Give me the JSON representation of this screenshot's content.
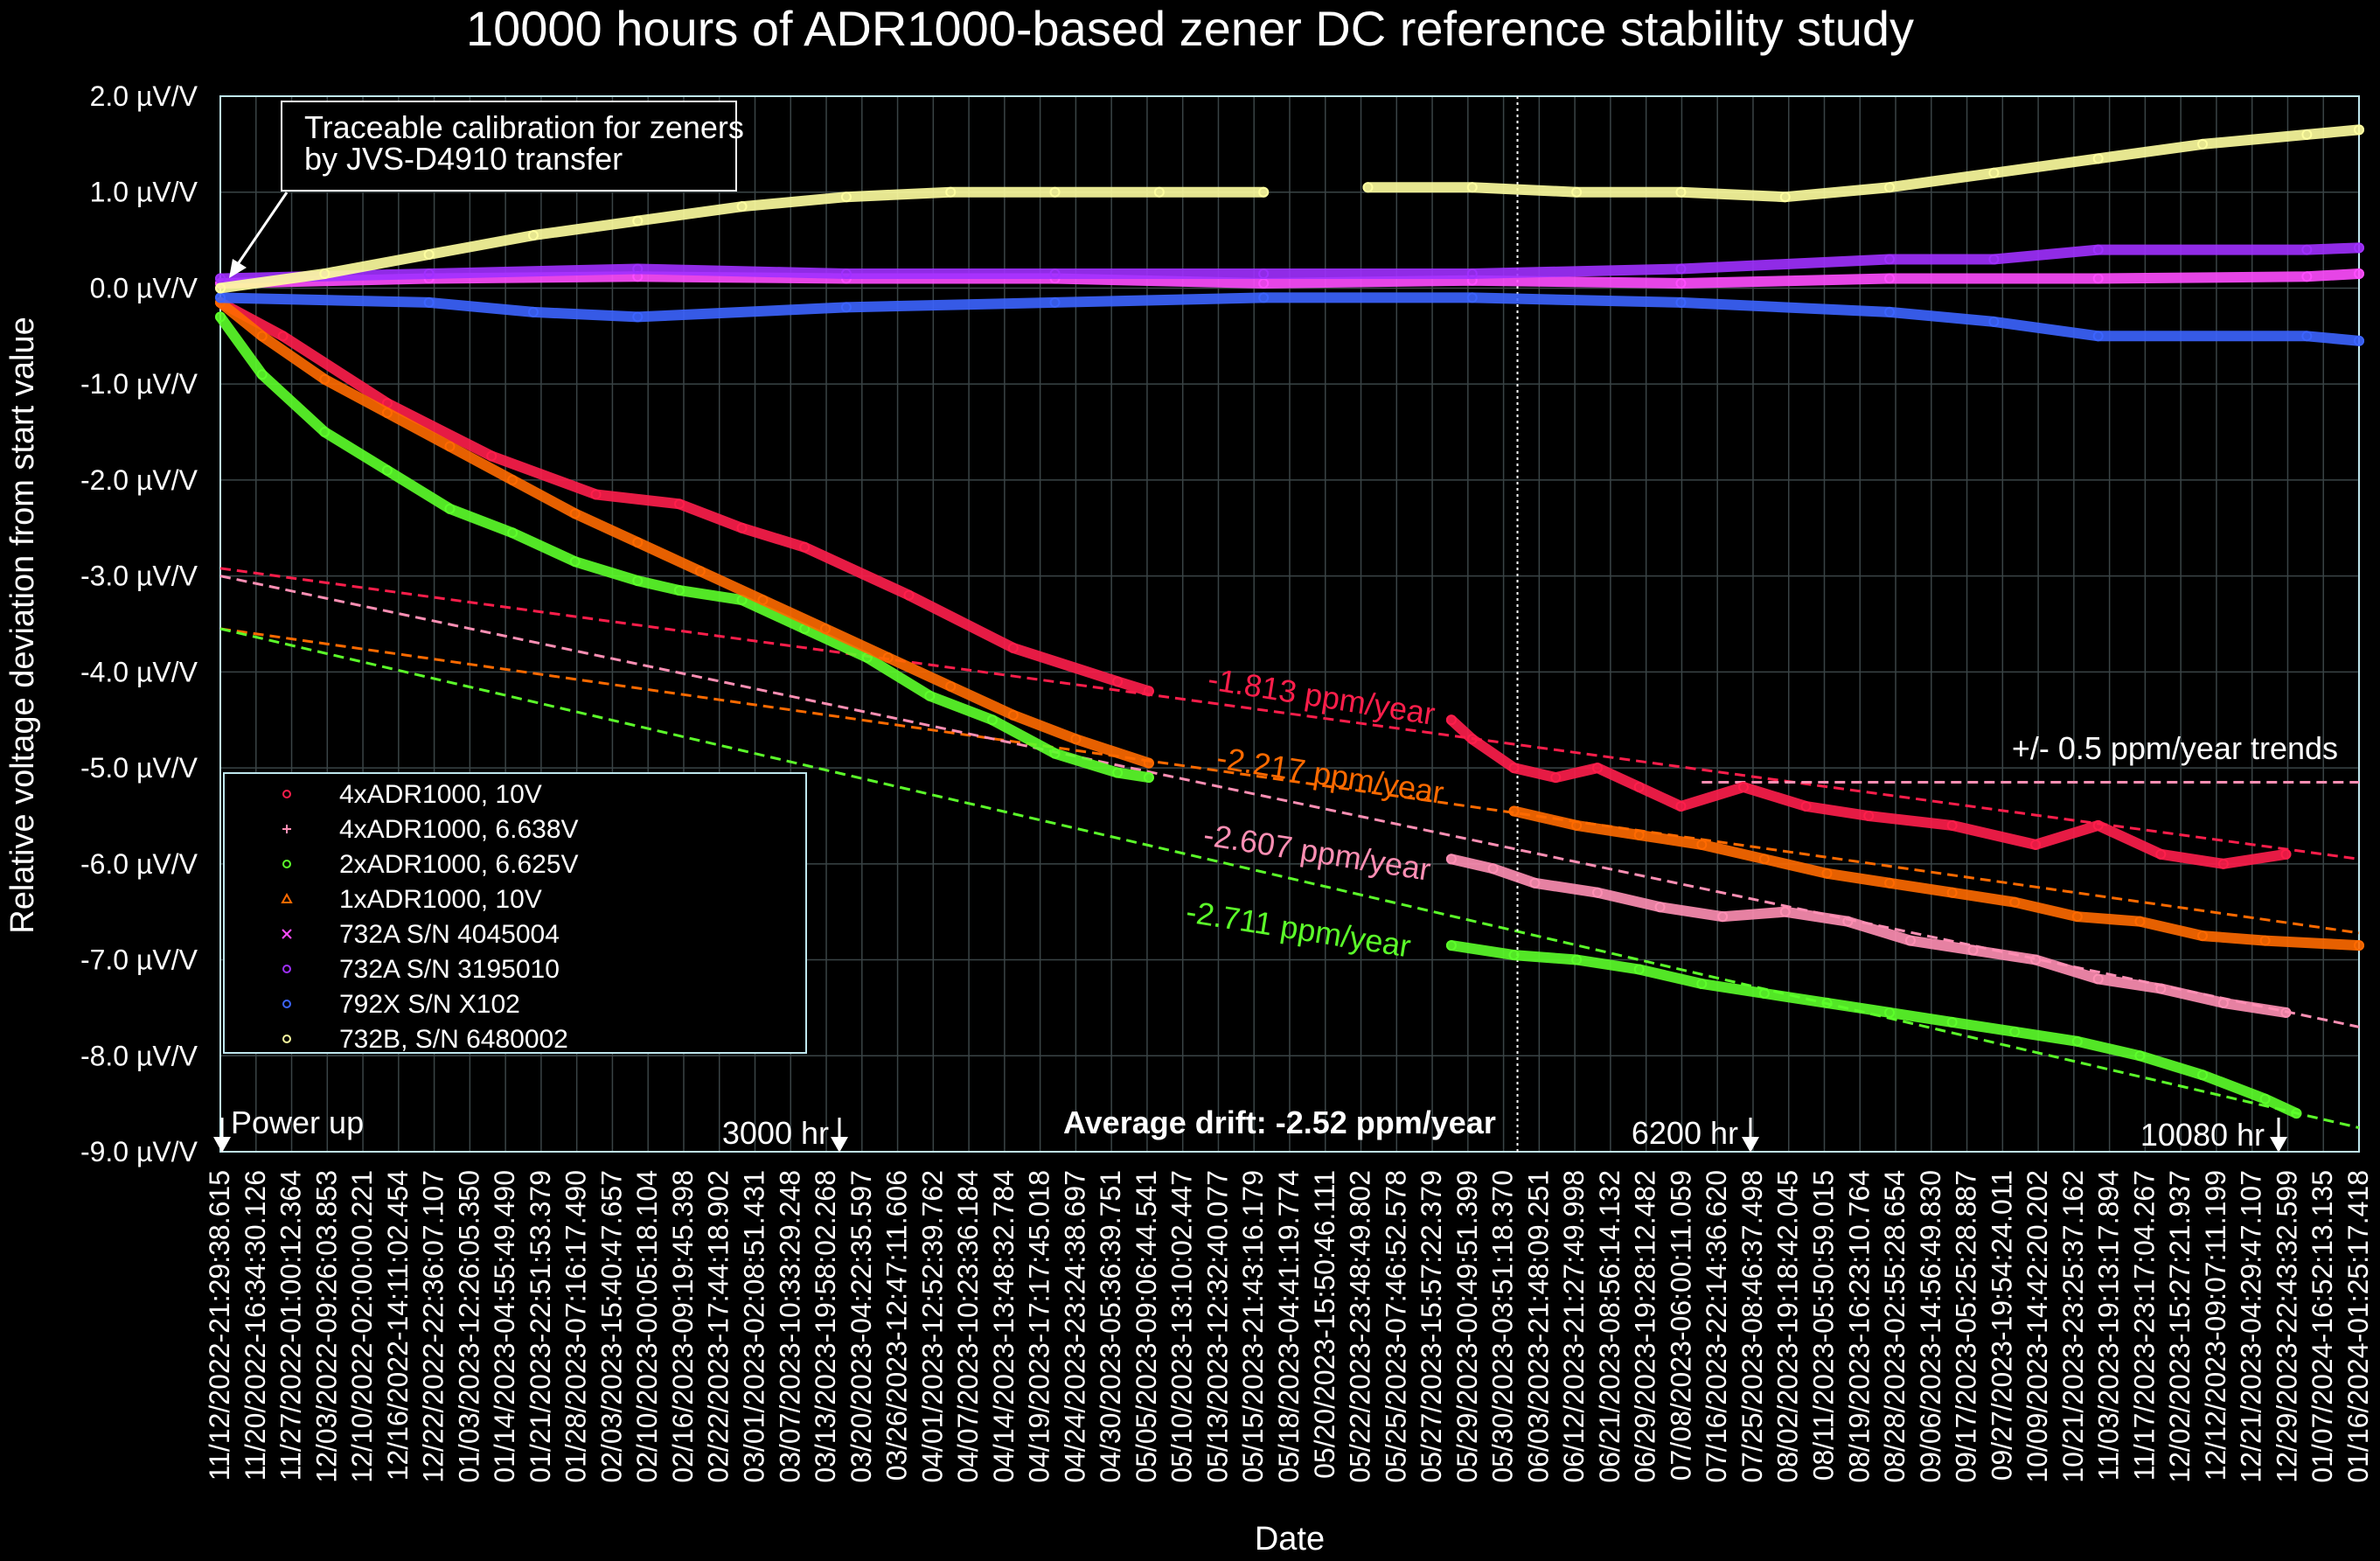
{
  "chart_data": {
    "type": "scatter",
    "title": "10000 hours of ADR1000-based zener DC reference stability study",
    "xlabel": "Date",
    "ylabel": "Relative voltage deviation from start value",
    "ylim": [
      -9.0,
      2.0
    ],
    "xlim_hours": [
      0,
      10250
    ],
    "grid": true,
    "y_ticks": [
      {
        "v": 2.0,
        "label": "2.0 µV/V"
      },
      {
        "v": 1.0,
        "label": "1.0 µV/V"
      },
      {
        "v": 0.0,
        "label": "0.0 µV/V"
      },
      {
        "v": -1.0,
        "label": "-1.0 µV/V"
      },
      {
        "v": -2.0,
        "label": "-2.0 µV/V"
      },
      {
        "v": -3.0,
        "label": "-3.0 µV/V"
      },
      {
        "v": -4.0,
        "label": "-4.0 µV/V"
      },
      {
        "v": -5.0,
        "label": "-5.0 µV/V"
      },
      {
        "v": -6.0,
        "label": "-6.0 µV/V"
      },
      {
        "v": -7.0,
        "label": "-7.0 µV/V"
      },
      {
        "v": -8.0,
        "label": "-8.0 µV/V"
      },
      {
        "v": -9.0,
        "label": "-9.0 µV/V"
      }
    ],
    "x_tick_labels": [
      "11/12/2022-21:29:38.615",
      "11/20/2022-16:34:30.126",
      "11/27/2022-01:00:12.364",
      "12/03/2022-09:26:03.853",
      "12/10/2022-02:00:00.221",
      "12/16/2022-14:11:02.454",
      "12/22/2022-22:36:07.107",
      "01/03/2023-12:26:05.350",
      "01/14/2023-04:55:49.490",
      "01/21/2023-22:51:53.379",
      "01/28/2023-07:16:17.490",
      "02/03/2023-15:40:47.657",
      "02/10/2023-00:05:18.104",
      "02/16/2023-09:19:45.398",
      "02/22/2023-17:44:18.902",
      "03/01/2023-02:08:51.431",
      "03/07/2023-10:33:29.248",
      "03/13/2023-19:58:02.268",
      "03/20/2023-04:22:35.597",
      "03/26/2023-12:47:11.606",
      "04/01/2023-12:52:39.762",
      "04/07/2023-10:23:36.184",
      "04/14/2023-13:48:32.784",
      "04/19/2023-17:17:45.018",
      "04/24/2023-23:24:38.697",
      "04/30/2023-05:36:39.751",
      "05/05/2023-09:06:44.541",
      "05/10/2023-13:10:02.447",
      "05/13/2023-12:32:40.077",
      "05/15/2023-21:43:16.179",
      "05/18/2023-04:41:19.774",
      "05/20/2023-15:50:46.111",
      "05/22/2023-23:48:49.802",
      "05/25/2023-07:46:52.578",
      "05/27/2023-15:57:22.379",
      "05/29/2023-00:49:51.399",
      "05/30/2023-03:51:18.370",
      "06/03/2023-21:48:09.251",
      "06/12/2023-21:27:49.998",
      "06/21/2023-08:56:14.132",
      "06/29/2023-19:28:12.482",
      "07/08/2023-06:00:11.059",
      "07/16/2023-22:14:36.620",
      "07/25/2023-08:46:37.498",
      "08/02/2023-19:18:42.045",
      "08/11/2023-05:50:59.015",
      "08/19/2023-16:23:10.764",
      "08/28/2023-02:55:28.654",
      "09/06/2023-14:56:49.830",
      "09/17/2023-05:25:28.887",
      "09/27/2023-19:54:24.011",
      "10/09/2023-14:42:20.202",
      "10/21/2023-23:25:37.162",
      "11/03/2023-19:13:17.894",
      "11/17/2023-23:17:04.267",
      "12/02/2023-15:27:21.937",
      "12/12/2023-09:07:11.199",
      "12/21/2023-04:29:47.107",
      "12/29/2023-22:43:32.599",
      "01/07/2024-16:52:13.135",
      "01/16/2024-01:25:17.418"
    ],
    "series": [
      {
        "name": "4xADR1000, 10V",
        "marker": "o",
        "color": "#ff1e4b",
        "x": [
          0,
          300,
          800,
          1300,
          1800,
          2200,
          2500,
          2800,
          3300,
          3800,
          4300,
          4450,
          5900,
          6000,
          6200,
          6400,
          6600,
          6800,
          7000,
          7300,
          7600,
          7900,
          8300,
          8700,
          9000,
          9300,
          9600,
          9900
        ],
        "y": [
          -0.15,
          -0.5,
          -1.2,
          -1.75,
          -2.15,
          -2.25,
          -2.5,
          -2.7,
          -3.2,
          -3.75,
          -4.1,
          -4.2,
          -4.5,
          -4.7,
          -5.0,
          -5.1,
          -5.0,
          -5.2,
          -5.4,
          -5.2,
          -5.4,
          -5.5,
          -5.6,
          -5.8,
          -5.6,
          -5.9,
          -6.0,
          -5.9
        ]
      },
      {
        "name": "4xADR1000, 6.638V",
        "marker": "+",
        "color": "#ff8fb4",
        "x": [
          5900,
          6100,
          6300,
          6600,
          6900,
          7200,
          7500,
          7800,
          8100,
          8400,
          8700,
          9000,
          9300,
          9600,
          9900
        ],
        "y": [
          -5.95,
          -6.05,
          -6.2,
          -6.3,
          -6.45,
          -6.55,
          -6.5,
          -6.6,
          -6.8,
          -6.9,
          -7.0,
          -7.2,
          -7.3,
          -7.45,
          -7.55
        ]
      },
      {
        "name": "2xADR1000, 6.625V",
        "marker": "o",
        "color": "#5cff2a",
        "x": [
          0,
          200,
          500,
          800,
          1100,
          1400,
          1700,
          2000,
          2200,
          2500,
          2800,
          3100,
          3400,
          3700,
          4000,
          4300,
          4450,
          5900,
          6200,
          6500,
          6800,
          7100,
          7400,
          7700,
          8000,
          8300,
          8600,
          8900,
          9200,
          9500,
          9800,
          9950
        ],
        "y": [
          -0.3,
          -0.9,
          -1.5,
          -1.9,
          -2.3,
          -2.55,
          -2.85,
          -3.05,
          -3.15,
          -3.25,
          -3.55,
          -3.85,
          -4.25,
          -4.5,
          -4.85,
          -5.05,
          -5.1,
          -6.85,
          -6.95,
          -7.0,
          -7.1,
          -7.25,
          -7.35,
          -7.45,
          -7.55,
          -7.65,
          -7.75,
          -7.85,
          -8.0,
          -8.2,
          -8.45,
          -8.6
        ]
      },
      {
        "name": "1xADR1000, 10V",
        "marker": "^",
        "color": "#ff6a00",
        "x": [
          0,
          200,
          500,
          800,
          1100,
          1400,
          1700,
          2000,
          2300,
          2600,
          2900,
          3200,
          3500,
          3800,
          4100,
          4450,
          6200,
          6500,
          6800,
          7100,
          7400,
          7700,
          8000,
          8300,
          8600,
          8900,
          9200,
          9500,
          9800,
          10250
        ],
        "y": [
          -0.15,
          -0.5,
          -0.95,
          -1.3,
          -1.65,
          -2.0,
          -2.35,
          -2.65,
          -2.95,
          -3.25,
          -3.55,
          -3.85,
          -4.15,
          -4.45,
          -4.7,
          -4.95,
          -5.45,
          -5.6,
          -5.7,
          -5.8,
          -5.95,
          -6.1,
          -6.2,
          -6.3,
          -6.4,
          -6.55,
          -6.6,
          -6.75,
          -6.8,
          -6.85
        ]
      },
      {
        "name": " 732A S/N 4045004",
        "marker": "x",
        "color": "#ff4dff",
        "x": [
          0,
          1000,
          2000,
          3000,
          4000,
          5000,
          6000,
          7000,
          8000,
          9000,
          10000,
          10250
        ],
        "y": [
          0.05,
          0.1,
          0.12,
          0.1,
          0.1,
          0.05,
          0.08,
          0.05,
          0.1,
          0.1,
          0.12,
          0.15
        ]
      },
      {
        "name": " 732A S/N 3195010",
        "marker": "o",
        "color": "#a030ff",
        "x": [
          0,
          1000,
          2000,
          3000,
          4000,
          5000,
          6000,
          7000,
          8000,
          8500,
          9000,
          10000,
          10250
        ],
        "y": [
          0.1,
          0.15,
          0.2,
          0.15,
          0.15,
          0.15,
          0.15,
          0.2,
          0.3,
          0.3,
          0.4,
          0.4,
          0.42
        ]
      },
      {
        "name": " 792X S/N X102",
        "marker": "o",
        "color": "#3c64ff",
        "x": [
          0,
          1000,
          1500,
          2000,
          3000,
          4000,
          5000,
          6000,
          7000,
          8000,
          8500,
          9000,
          10000,
          10250
        ],
        "y": [
          -0.1,
          -0.15,
          -0.25,
          -0.3,
          -0.2,
          -0.15,
          -0.1,
          -0.1,
          -0.15,
          -0.25,
          -0.35,
          -0.5,
          -0.5,
          -0.55
        ]
      },
      {
        "name": "732B, S/N 6480002",
        "marker": "o",
        "color": "#ffffa0",
        "x": [
          0,
          500,
          1000,
          1500,
          2000,
          2500,
          3000,
          3500,
          4000,
          4500,
          5000,
          5500,
          6000,
          6500,
          7000,
          7500,
          8000,
          8500,
          9000,
          9500,
          10000,
          10250
        ],
        "y": [
          0.0,
          0.15,
          0.35,
          0.55,
          0.7,
          0.85,
          0.95,
          1.0,
          1.0,
          1.0,
          1.0,
          1.05,
          1.05,
          1.0,
          1.0,
          0.95,
          1.05,
          1.2,
          1.35,
          1.5,
          1.6,
          1.65
        ]
      }
    ],
    "trend_lines": [
      {
        "label": "-1.813 ppm/year",
        "color": "#ff1e4b",
        "x": [
          0,
          10250
        ],
        "y": [
          -2.92,
          -5.95
        ]
      },
      {
        "label": "-2.217 ppm/year",
        "color": "#ff6a00",
        "x": [
          0,
          10250
        ],
        "y": [
          -3.55,
          -6.72
        ]
      },
      {
        "label": "-2.607 ppm/year",
        "color": "#ff8fb4",
        "x": [
          0,
          10250
        ],
        "y": [
          -3.0,
          -7.7
        ]
      },
      {
        "label": "-2.711 ppm/year",
        "color": "#5cff2a",
        "x": [
          0,
          10250
        ],
        "y": [
          -3.55,
          -8.75
        ]
      },
      {
        "label": "",
        "color": "#ff8fb4",
        "x": [
          7100,
          10250
        ],
        "y": [
          -5.15,
          -5.15
        ]
      }
    ],
    "annotations": {
      "calibration_note_line1": "Traceable calibration for zeners",
      "calibration_note_line2": "by JVS-D4910 transfer",
      "trend_note": "+/- 0.5 ppm/year trends",
      "average_drift": "Average drift: -2.52 ppm/year",
      "markers": [
        {
          "label": "Power up",
          "hour": 0
        },
        {
          "label": "3000 hr",
          "hour": 3000
        },
        {
          "label": "6200 hr",
          "hour": 6200
        },
        {
          "label": "10080 hr",
          "hour": 10080
        }
      ]
    },
    "legend_position": "bottom-left"
  }
}
